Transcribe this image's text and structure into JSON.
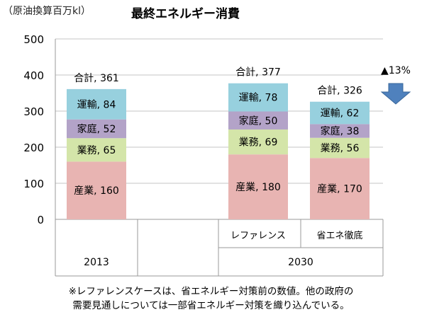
{
  "chart_data": {
    "type": "bar",
    "stacked": true,
    "title": "最終エネルギー消費",
    "unit_label": "（原油換算百万kl）",
    "ylim": [
      0,
      500
    ],
    "yticks": [
      "0",
      "100",
      "200",
      "300",
      "400",
      "500"
    ],
    "ytick_values": [
      0,
      100,
      200,
      300,
      400,
      500
    ],
    "grid": true,
    "categories": [
      "2013",
      "レファレンス",
      "省エネ徹底"
    ],
    "year_groups": [
      {
        "label": "2013",
        "span": [
          0,
          1
        ]
      },
      {
        "label": "2030",
        "span": [
          1,
          3
        ]
      }
    ],
    "series": [
      {
        "name": "産業",
        "color": "#e8b4b2",
        "values": [
          160,
          180,
          170
        ]
      },
      {
        "name": "業務",
        "color": "#d4e5a9",
        "values": [
          65,
          69,
          56
        ]
      },
      {
        "name": "家庭",
        "color": "#b3a3c8",
        "values": [
          52,
          50,
          38
        ]
      },
      {
        "name": "運輸",
        "color": "#97d0de",
        "values": [
          84,
          78,
          62
        ]
      }
    ],
    "totals": [
      361,
      377,
      326
    ],
    "total_label": "合計",
    "annotation": "▲13%",
    "annotation_arrow_color": "#4f81bd"
  },
  "footnote": {
    "line1": "※レファレンスケースは、省エネルギー対策前の数値。他の政府の",
    "line2": "需要見通しについては一部省エネルギー対策を織り込んでいる。"
  }
}
